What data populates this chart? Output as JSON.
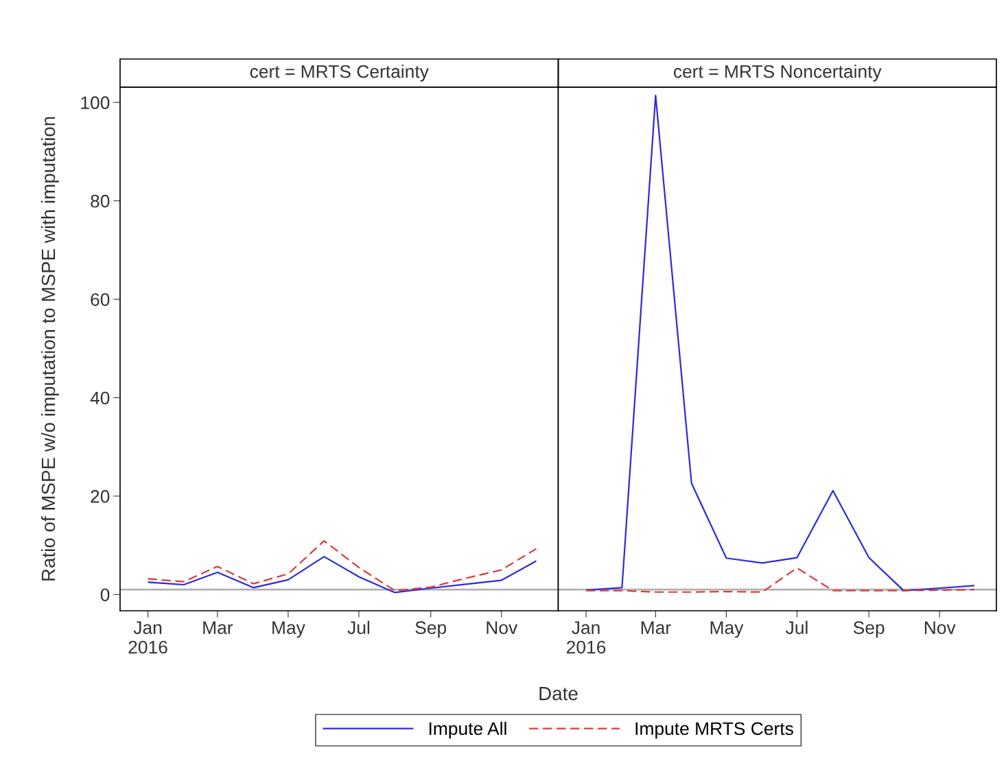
{
  "chart_data": [
    {
      "type": "line",
      "title": "cert = MRTS Certainty",
      "xlabel": "Date",
      "ylabel": "Ratio of MSPE w/o imputation to MSPE with imputation",
      "x": [
        "2016-01-01",
        "2016-02-01",
        "2016-03-01",
        "2016-04-01",
        "2016-05-01",
        "2016-06-01",
        "2016-07-01",
        "2016-08-01",
        "2016-09-01",
        "2016-10-01",
        "2016-11-01",
        "2016-12-01"
      ],
      "series": [
        {
          "name": "Impute All",
          "color": "#2a2ae0",
          "line_style": "solid",
          "values": [
            2.5,
            2.0,
            4.5,
            1.4,
            3.0,
            7.7,
            3.6,
            0.4,
            1.3,
            2.1,
            2.9,
            6.8
          ]
        },
        {
          "name": "Impute MRTS Certs",
          "color": "#e03a3a",
          "line_style": "dashed",
          "values": [
            3.2,
            2.6,
            5.7,
            2.2,
            4.2,
            10.9,
            5.5,
            0.8,
            1.5,
            3.3,
            5.0,
            9.3
          ]
        }
      ],
      "xlim": [
        "2015-12-08",
        "2016-12-20"
      ],
      "xticks": [
        {
          "value": "2016-01-01",
          "label": "Jan\n2016"
        },
        {
          "value": "2016-03-01",
          "label": "Mar"
        },
        {
          "value": "2016-05-01",
          "label": "May"
        },
        {
          "value": "2016-07-01",
          "label": "Jul"
        },
        {
          "value": "2016-09-01",
          "label": "Sep"
        },
        {
          "value": "2016-11-01",
          "label": "Nov"
        }
      ],
      "ylim": [
        -3.3,
        103.1
      ],
      "yticks": [
        0,
        20,
        40,
        60,
        80,
        100
      ],
      "ref_lines": [
        {
          "axis": "y",
          "value": 1,
          "color": "#b0b0b0"
        }
      ],
      "legend": "bottom",
      "grid": false
    },
    {
      "type": "line",
      "title": "cert = MRTS Noncertainty",
      "x": [
        "2016-01-01",
        "2016-02-01",
        "2016-03-01",
        "2016-04-01",
        "2016-05-01",
        "2016-06-01",
        "2016-07-01",
        "2016-08-01",
        "2016-09-01",
        "2016-10-01",
        "2016-11-01",
        "2016-12-01"
      ],
      "series": [
        {
          "name": "Impute All",
          "color": "#2a2ae0",
          "line_style": "solid",
          "values": [
            0.9,
            1.4,
            101.4,
            22.6,
            7.4,
            6.4,
            7.5,
            21.1,
            7.5,
            0.8,
            1.3,
            1.8
          ]
        },
        {
          "name": "Impute MRTS Certs",
          "color": "#e03a3a",
          "line_style": "dashed",
          "values": [
            0.8,
            0.8,
            0.5,
            0.5,
            0.6,
            0.5,
            5.4,
            0.8,
            0.8,
            0.8,
            0.9,
            1.0
          ]
        }
      ],
      "xlim": [
        "2015-12-08",
        "2016-12-20"
      ],
      "xticks": [
        {
          "value": "2016-01-01",
          "label": "Jan\n2016"
        },
        {
          "value": "2016-03-01",
          "label": "Mar"
        },
        {
          "value": "2016-05-01",
          "label": "May"
        },
        {
          "value": "2016-07-01",
          "label": "Jul"
        },
        {
          "value": "2016-09-01",
          "label": "Sep"
        },
        {
          "value": "2016-11-01",
          "label": "Nov"
        }
      ],
      "ylim": [
        -3.3,
        103.1
      ],
      "yticks": [
        0,
        20,
        40,
        60,
        80,
        100
      ],
      "ref_lines": [
        {
          "axis": "y",
          "value": 1,
          "color": "#b0b0b0"
        }
      ],
      "tick_labels": "x",
      "grid": false
    }
  ]
}
